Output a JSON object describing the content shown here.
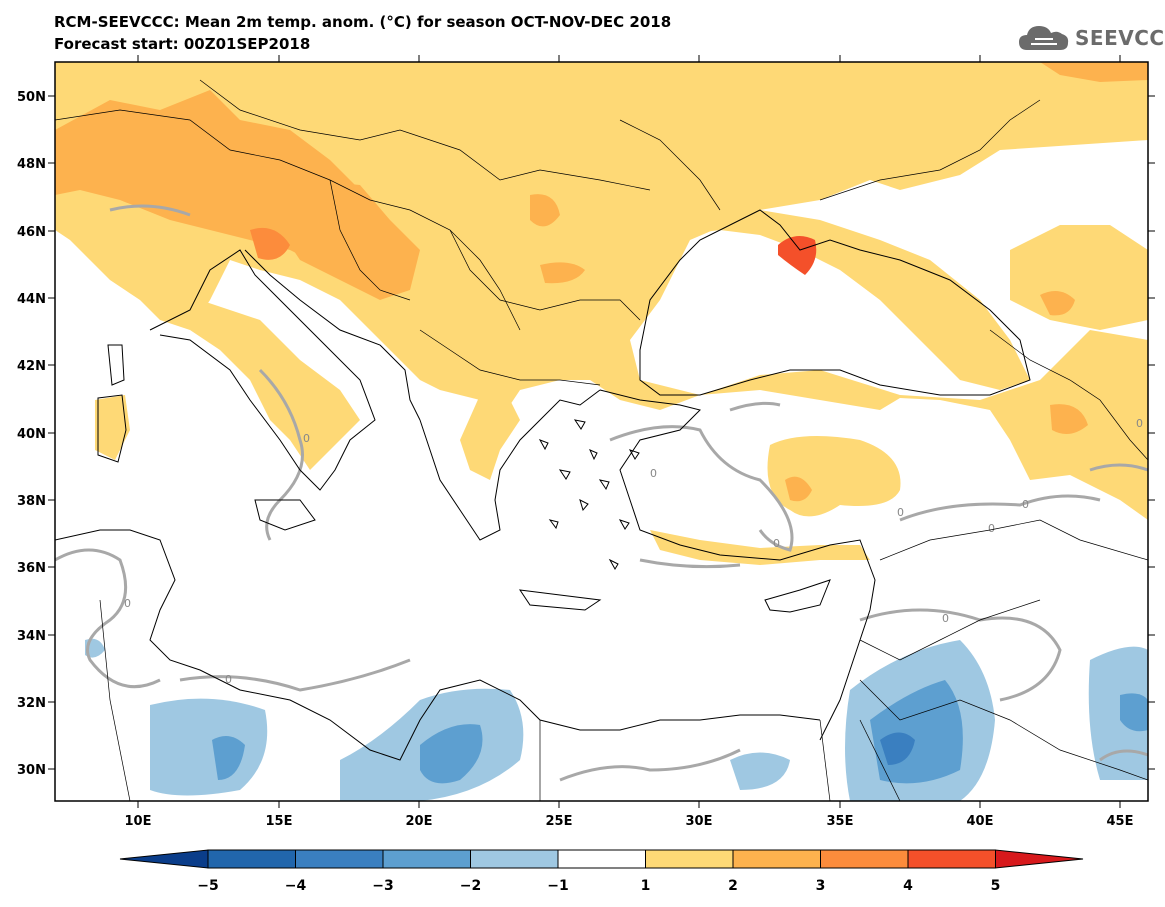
{
  "header": {
    "title": "RCM-SEEVCCC: Mean 2m temp. anom. (°C) for season OCT-NOV-DEC 2018",
    "subtitle": "Forecast start: 00Z01SEP2018"
  },
  "logo": {
    "text": "SEEVCCC",
    "icon": "cloud-icon"
  },
  "map": {
    "lon_range": [
      7,
      46
    ],
    "lat_range": [
      29,
      51
    ],
    "x_ticks": [
      "10E",
      "15E",
      "20E",
      "25E",
      "30E",
      "35E",
      "40E",
      "45E"
    ],
    "y_ticks": [
      "30N",
      "32N",
      "34N",
      "36N",
      "38N",
      "40N",
      "42N",
      "44N",
      "46N",
      "48N",
      "50N"
    ],
    "contour_label": "0"
  },
  "colorbar": {
    "labels": [
      "−5",
      "−4",
      "−3",
      "−2",
      "−1",
      "1",
      "2",
      "3",
      "4",
      "5"
    ],
    "colors": [
      "#2166ac",
      "#3a7fc0",
      "#5d9fd0",
      "#9fc8e2",
      "#ffffff",
      "#fed976",
      "#fdb24e",
      "#fc8c3c",
      "#f4502a",
      "#d7191c"
    ],
    "low_extend_color": "#0a3d8a",
    "high_extend_color": "#d7191c"
  },
  "palette": {
    "warm1": "#fed976",
    "warm2": "#fdb24e",
    "warm3": "#fc8c3c",
    "warm4": "#f4502a",
    "cool1": "#9fc8e2",
    "cool2": "#5d9fd0",
    "cool3": "#3a7fc0",
    "contour": "#a8a8a8"
  }
}
